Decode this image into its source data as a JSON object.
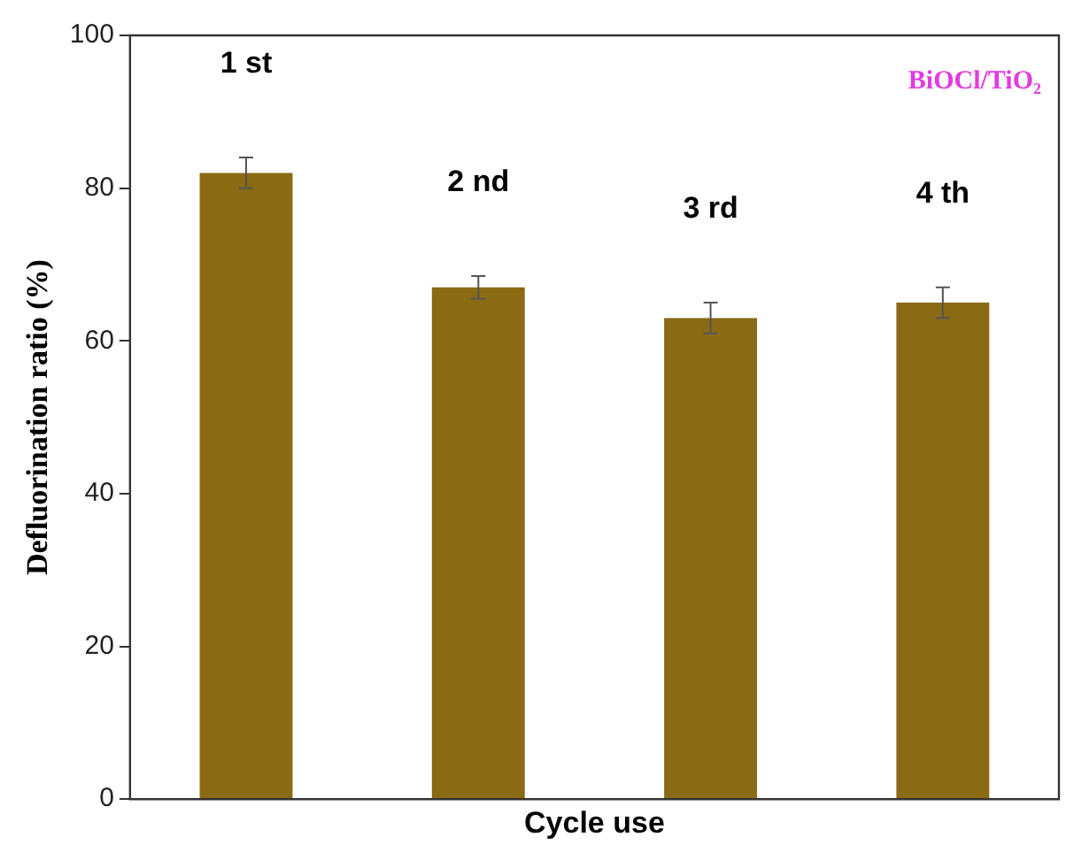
{
  "chart_data": {
    "type": "bar",
    "xlabel": "Cycle use",
    "ylabel": "Defluorination ratio (%)",
    "categories": [
      "1 st",
      "2 nd",
      "3 rd",
      "4 th"
    ],
    "values": [
      82,
      67,
      63,
      65
    ],
    "errors": [
      2,
      1.5,
      2,
      2
    ],
    "color": "#8b6a14",
    "ylim": [
      0,
      100
    ],
    "yticks": [
      0,
      20,
      40,
      60,
      80,
      100
    ],
    "grid": false,
    "tick_labels": "y",
    "annotations": [
      "BiOCl/TiO₂"
    ]
  }
}
